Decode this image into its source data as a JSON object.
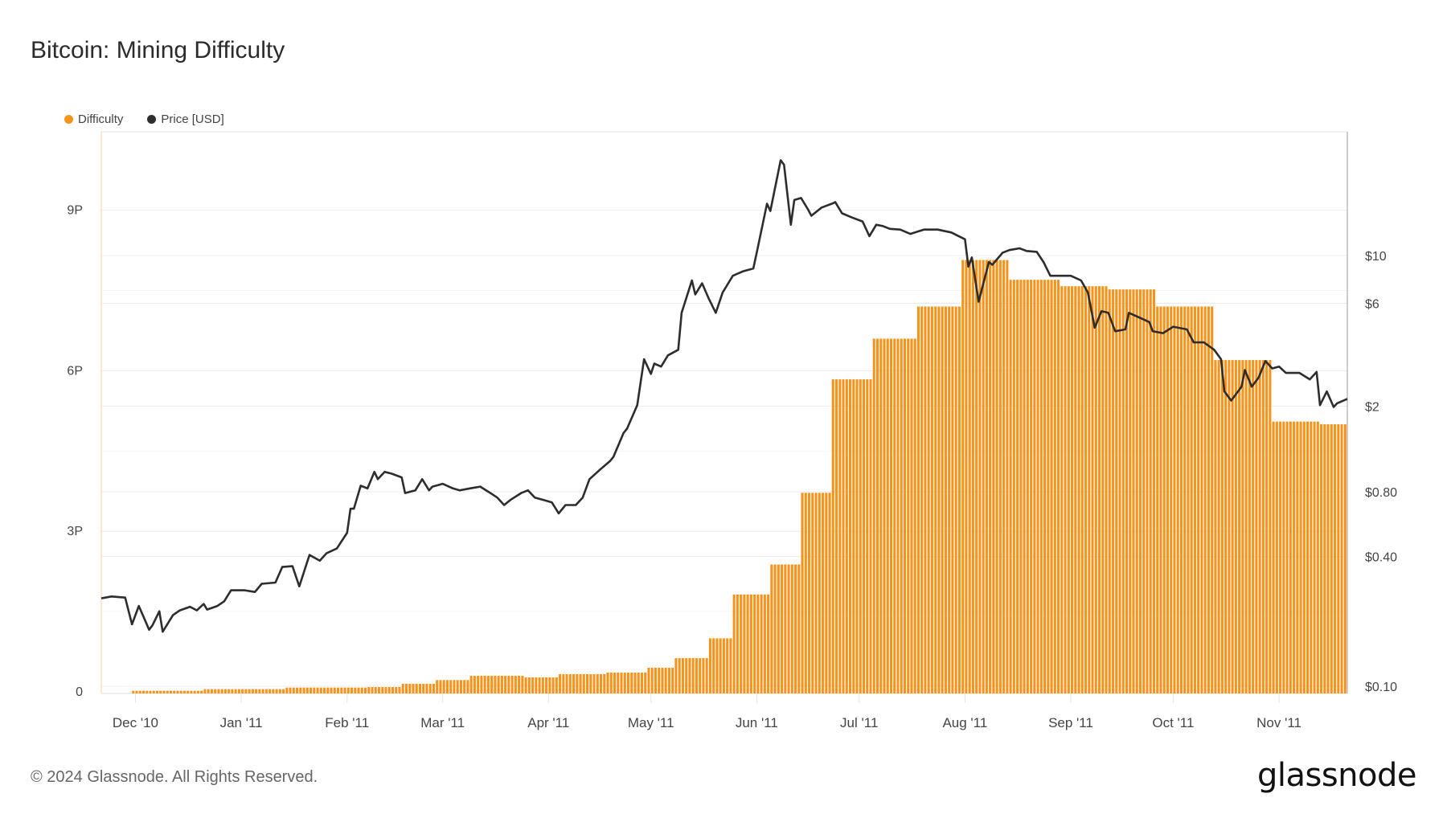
{
  "title": "Bitcoin: Mining Difficulty",
  "footer": "© 2024 Glassnode. All Rights Reserved.",
  "logo": "glassnode",
  "colors": {
    "difficulty": "#f7931a",
    "price": "#2d2d2d",
    "grid": "#ececec"
  },
  "chart_data": {
    "type": "bar+line",
    "title": "Bitcoin: Mining Difficulty",
    "x_start_date": "2010-11-21",
    "x_unit": "days since 2010-11-21",
    "xlim": [
      0,
      365
    ],
    "x_ticks": [
      {
        "label": "Dec '10",
        "day": 10
      },
      {
        "label": "Jan '11",
        "day": 41
      },
      {
        "label": "Feb '11",
        "day": 72
      },
      {
        "label": "Mar '11",
        "day": 100
      },
      {
        "label": "Apr '11",
        "day": 131
      },
      {
        "label": "May '11",
        "day": 161
      },
      {
        "label": "Jun '11",
        "day": 192
      },
      {
        "label": "Jul '11",
        "day": 222
      },
      {
        "label": "Aug '11",
        "day": 253
      },
      {
        "label": "Sep '11",
        "day": 284
      },
      {
        "label": "Oct '11",
        "day": 314
      },
      {
        "label": "Nov '11",
        "day": 345
      }
    ],
    "legend": [
      {
        "name": "Difficulty",
        "color": "#f7931a"
      },
      {
        "name": "Price [USD]",
        "color": "#2d2d2d"
      }
    ],
    "legend_position": "top-left",
    "left_axis": {
      "label": "Difficulty",
      "ylim": [
        0,
        10.5
      ],
      "unit": "P",
      "ticks": [
        {
          "v": 0,
          "label": "0"
        },
        {
          "v": 3,
          "label": "3P"
        },
        {
          "v": 6,
          "label": "6P"
        },
        {
          "v": 9,
          "label": "9P"
        }
      ]
    },
    "right_axis": {
      "label": "Price [USD]",
      "scale": "log",
      "ylim": [
        0.1,
        10
      ],
      "ticks": [
        {
          "v": 10,
          "label": "$10"
        },
        {
          "v": 6,
          "label": "$6"
        },
        {
          "v": 2,
          "label": "$2"
        },
        {
          "v": 0.8,
          "label": "$0.80"
        },
        {
          "v": 0.4,
          "label": "$0.40"
        },
        {
          "v": 0.1,
          "label": "$0.10"
        }
      ]
    },
    "difficulty_steps": [
      {
        "from_day": 9,
        "value_P": 0.02
      },
      {
        "from_day": 30,
        "value_P": 0.05
      },
      {
        "from_day": 54,
        "value_P": 0.08
      },
      {
        "from_day": 78,
        "value_P": 0.09
      },
      {
        "from_day": 88,
        "value_P": 0.15
      },
      {
        "from_day": 98,
        "value_P": 0.22
      },
      {
        "from_day": 108,
        "value_P": 0.3
      },
      {
        "from_day": 124,
        "value_P": 0.27
      },
      {
        "from_day": 134,
        "value_P": 0.33
      },
      {
        "from_day": 148,
        "value_P": 0.36
      },
      {
        "from_day": 160,
        "value_P": 0.45
      },
      {
        "from_day": 168,
        "value_P": 0.63
      },
      {
        "from_day": 178,
        "value_P": 1.0
      },
      {
        "from_day": 185,
        "value_P": 1.82
      },
      {
        "from_day": 196,
        "value_P": 2.38
      },
      {
        "from_day": 205,
        "value_P": 3.72
      },
      {
        "from_day": 214,
        "value_P": 5.84
      },
      {
        "from_day": 226,
        "value_P": 6.6
      },
      {
        "from_day": 239,
        "value_P": 7.2
      },
      {
        "from_day": 252,
        "value_P": 8.07
      },
      {
        "from_day": 266,
        "value_P": 7.7
      },
      {
        "from_day": 281,
        "value_P": 7.58
      },
      {
        "from_day": 295,
        "value_P": 7.52
      },
      {
        "from_day": 309,
        "value_P": 7.2
      },
      {
        "from_day": 326,
        "value_P": 6.2
      },
      {
        "from_day": 343,
        "value_P": 5.05
      },
      {
        "from_day": 357,
        "value_P": 5.0
      }
    ],
    "difficulty_end_day": 364,
    "price": {
      "days": [
        0,
        3,
        7,
        9,
        11,
        14,
        15,
        17,
        18,
        21,
        23,
        26,
        28,
        30,
        31,
        34,
        36,
        38,
        42,
        45,
        47,
        51,
        53,
        56,
        58,
        61,
        64,
        66,
        69,
        72,
        73,
        74,
        76,
        78,
        80,
        81,
        83,
        85,
        88,
        89,
        92,
        94,
        96,
        97,
        100,
        103,
        105,
        108,
        111,
        114,
        116,
        118,
        120,
        123,
        125,
        127,
        130,
        132,
        134,
        136,
        139,
        141,
        143,
        146,
        149,
        150,
        153,
        154,
        157,
        159,
        161,
        162,
        164,
        166,
        169,
        170,
        173,
        174,
        176,
        178,
        180,
        182,
        185,
        188,
        191,
        192,
        195,
        196,
        199,
        200,
        202,
        203,
        205,
        207,
        208,
        211,
        214,
        215,
        217,
        220,
        223,
        225,
        227,
        229,
        231,
        234,
        237,
        241,
        245,
        249,
        253,
        254,
        255,
        257,
        260,
        261,
        264,
        266,
        269,
        271,
        274,
        276,
        278,
        281,
        284,
        287,
        289,
        291,
        293,
        295,
        297,
        300,
        301,
        304,
        307,
        308,
        311,
        314,
        318,
        320,
        323,
        326,
        328,
        329,
        331,
        334,
        335,
        337,
        339,
        341,
        343,
        345,
        347,
        351,
        354,
        356,
        357,
        359,
        361,
        362,
        365
      ],
      "usd": [
        0.256,
        0.261,
        0.258,
        0.194,
        0.236,
        0.183,
        0.192,
        0.223,
        0.179,
        0.214,
        0.225,
        0.234,
        0.225,
        0.241,
        0.227,
        0.236,
        0.248,
        0.279,
        0.279,
        0.274,
        0.299,
        0.303,
        0.358,
        0.361,
        0.291,
        0.407,
        0.383,
        0.415,
        0.436,
        0.516,
        0.667,
        0.667,
        0.854,
        0.829,
        0.99,
        0.915,
        0.99,
        0.971,
        0.933,
        0.789,
        0.812,
        0.915,
        0.812,
        0.845,
        0.871,
        0.829,
        0.812,
        0.829,
        0.845,
        0.789,
        0.751,
        0.694,
        0.736,
        0.789,
        0.812,
        0.751,
        0.729,
        0.714,
        0.635,
        0.694,
        0.694,
        0.751,
        0.915,
        1.01,
        1.11,
        1.16,
        1.5,
        1.57,
        2.02,
        3.3,
        2.82,
        3.15,
        3.05,
        3.44,
        3.65,
        5.42,
        7.66,
        6.6,
        7.43,
        6.28,
        5.42,
        6.73,
        8.05,
        8.45,
        8.71,
        10.3,
        17.4,
        16.1,
        27.7,
        26.4,
        13.9,
        18.1,
        18.5,
        16.4,
        15.3,
        16.7,
        17.4,
        17.7,
        15.7,
        15.0,
        14.4,
        12.3,
        13.9,
        13.7,
        13.3,
        13.2,
        12.6,
        13.2,
        13.2,
        12.8,
        11.9,
        8.88,
        9.8,
        6.1,
        9.33,
        9.06,
        10.3,
        10.6,
        10.8,
        10.5,
        10.4,
        9.33,
        8.05,
        8.05,
        8.05,
        7.66,
        6.73,
        4.62,
        5.52,
        5.42,
        4.45,
        4.54,
        5.42,
        5.16,
        4.91,
        4.45,
        4.36,
        4.67,
        4.54,
        3.95,
        3.95,
        3.65,
        3.3,
        2.34,
        2.12,
        2.46,
        2.94,
        2.46,
        2.71,
        3.24,
        2.99,
        3.05,
        2.85,
        2.85,
        2.66,
        2.88,
        2.02,
        2.34,
        1.98,
        2.06,
        2.16
      ]
    }
  }
}
